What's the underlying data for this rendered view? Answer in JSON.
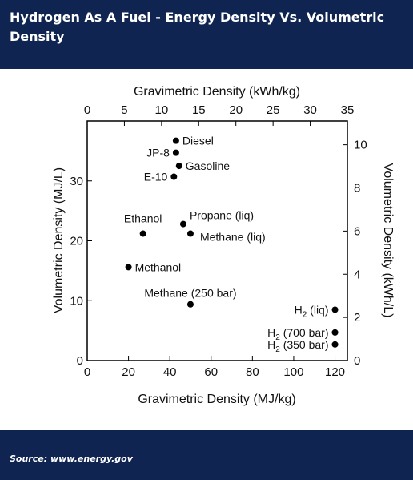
{
  "header": {
    "title": "Hydrogen As A Fuel - Energy Density Vs. Volumetric Density"
  },
  "footer": {
    "source": "Source: www.energy.gov"
  },
  "colors": {
    "banner": "#0f2450",
    "banner_text": "#ffffff",
    "marker": "#000000"
  },
  "chart_data": {
    "type": "scatter",
    "title": "",
    "xlabel": "Gravimetric Density (MJ/kg)",
    "ylabel": "Volumetric Density (MJ/L)",
    "x2label": "Gravimetric Density (kWh/kg)",
    "y2label": "Volumetric Density (kWh/L)",
    "xlim": [
      0,
      126
    ],
    "ylim": [
      0,
      40
    ],
    "x2lim": [
      0,
      35
    ],
    "y2lim": [
      0,
      11.1
    ],
    "xticks": [
      0,
      20,
      40,
      60,
      80,
      100,
      120
    ],
    "yticks": [
      0,
      10,
      20,
      30
    ],
    "x2ticks": [
      0,
      5,
      10,
      15,
      20,
      25,
      30,
      35
    ],
    "y2ticks": [
      0,
      2,
      4,
      6,
      8,
      10
    ],
    "grid": false,
    "points": [
      {
        "label": "Diesel",
        "x": 43.0,
        "y": 36.7,
        "label_pos": "right"
      },
      {
        "label": "JP-8",
        "x": 43.0,
        "y": 34.7,
        "label_pos": "left"
      },
      {
        "label": "Gasoline",
        "x": 44.5,
        "y": 32.5,
        "label_pos": "right"
      },
      {
        "label": "E-10",
        "x": 42.0,
        "y": 30.7,
        "label_pos": "left"
      },
      {
        "label": "Ethanol",
        "x": 27.0,
        "y": 21.2,
        "label_pos": "above-left"
      },
      {
        "label": "Propane (liq)",
        "x": 46.5,
        "y": 22.8,
        "label_pos": "above-right"
      },
      {
        "label": "Methane (liq)",
        "x": 50.0,
        "y": 21.2,
        "label_pos": "below-right"
      },
      {
        "label": "Methanol",
        "x": 20.0,
        "y": 15.6,
        "label_pos": "right"
      },
      {
        "label": "Methane (250 bar)",
        "x": 50.0,
        "y": 9.4,
        "label_pos": "above"
      },
      {
        "label": "H2 (liq)",
        "x": 120.0,
        "y": 8.5,
        "label_pos": "left"
      },
      {
        "label": "H2 (700 bar)",
        "x": 120.0,
        "y": 4.7,
        "label_pos": "left"
      },
      {
        "label": "H2 (350 bar)",
        "x": 120.0,
        "y": 2.7,
        "label_pos": "left"
      }
    ]
  }
}
